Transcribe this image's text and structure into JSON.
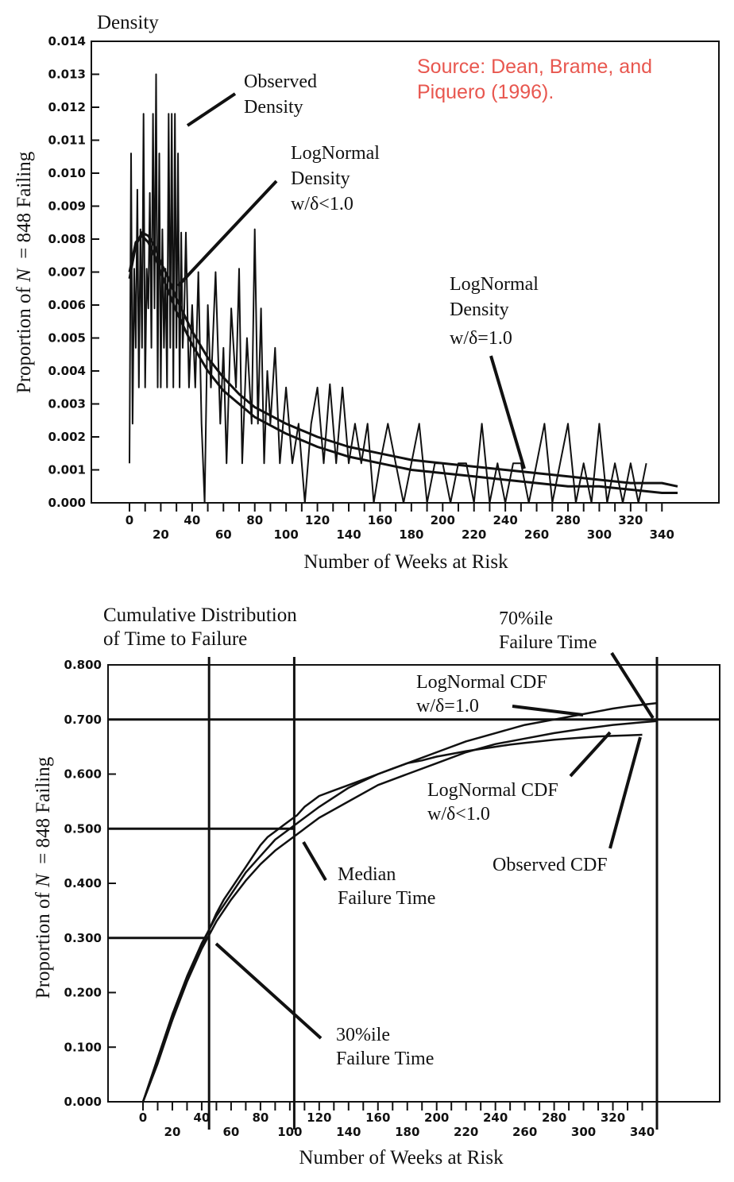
{
  "source_note": [
    "Source: Dean, Brame, and",
    "Piquero (1996)."
  ],
  "colors": {
    "ink": "#111111",
    "source_note": "#e8574f",
    "background": "#ffffff"
  },
  "chart_data": [
    {
      "type": "line",
      "title": "Density",
      "xlabel": "Number of Weeks at Risk",
      "ylabel": "Proportion of N  = 848 Failing",
      "xlim": [
        0,
        350
      ],
      "ylim": [
        0,
        0.014
      ],
      "x_ticks_upper": [
        "0",
        "40",
        "80",
        "120",
        "160",
        "200",
        "240",
        "280",
        "320"
      ],
      "x_ticks_lower": [
        "20",
        "60",
        "100",
        "140",
        "180",
        "220",
        "260",
        "300",
        "340"
      ],
      "y_ticks": [
        "0.000",
        "0.001",
        "0.002",
        "0.003",
        "0.004",
        "0.005",
        "0.006",
        "0.007",
        "0.008",
        "0.009",
        "0.010",
        "0.011",
        "0.012",
        "0.013",
        "0.014"
      ],
      "annotations": [
        {
          "label": [
            "Observed",
            "Density"
          ],
          "points_to_x": 36,
          "points_to_y": 0.0115
        },
        {
          "label": [
            "LogNormal",
            "Density",
            "w/δ<1.0"
          ],
          "points_to_x": 30,
          "points_to_y": 0.0065
        },
        {
          "label": [
            "LogNormal",
            "Density",
            "w/δ=1.0"
          ],
          "points_to_x": 263,
          "points_to_y": 0.001
        }
      ],
      "series": [
        {
          "style": "spiky",
          "x": [
            0,
            1,
            2,
            3,
            4,
            5,
            6,
            7,
            8,
            9,
            10,
            11,
            12,
            13,
            14,
            15,
            16,
            17,
            18,
            19,
            20,
            21,
            22,
            23,
            24,
            25,
            26,
            27,
            28,
            29,
            30,
            31,
            32,
            33,
            34,
            35,
            36,
            38,
            40,
            42,
            44,
            46,
            48,
            50,
            52,
            55,
            58,
            60,
            62,
            65,
            68,
            70,
            72,
            75,
            78,
            80,
            82,
            84,
            86,
            88,
            90,
            93,
            96,
            100,
            104,
            108,
            112,
            116,
            120,
            124,
            128,
            132,
            136,
            140,
            144,
            148,
            152,
            156,
            160,
            165,
            170,
            175,
            180,
            185,
            190,
            195,
            200,
            205,
            210,
            215,
            220,
            225,
            230,
            235,
            240,
            245,
            250,
            255,
            260,
            265,
            270,
            275,
            280,
            285,
            290,
            295,
            300,
            305,
            310,
            315,
            320,
            325,
            330
          ],
          "values": [
            0.0012,
            0.0106,
            0.0024,
            0.0071,
            0.0047,
            0.0095,
            0.0035,
            0.0083,
            0.0047,
            0.0118,
            0.0035,
            0.0071,
            0.0059,
            0.0094,
            0.0047,
            0.0118,
            0.0059,
            0.013,
            0.0035,
            0.0106,
            0.0035,
            0.0083,
            0.0047,
            0.0071,
            0.0035,
            0.0118,
            0.0047,
            0.0118,
            0.0035,
            0.0118,
            0.0047,
            0.0106,
            0.0035,
            0.0082,
            0.0047,
            0.0059,
            0.0082,
            0.0035,
            0.006,
            0.0035,
            0.007,
            0.0024,
            0.0,
            0.006,
            0.0035,
            0.007,
            0.0024,
            0.0047,
            0.0012,
            0.0059,
            0.0035,
            0.0071,
            0.0012,
            0.005,
            0.0024,
            0.0083,
            0.0024,
            0.0059,
            0.0012,
            0.004,
            0.0024,
            0.0047,
            0.0012,
            0.0035,
            0.0012,
            0.0024,
            0.0,
            0.0024,
            0.0035,
            0.0012,
            0.0036,
            0.0012,
            0.0035,
            0.0012,
            0.0024,
            0.0012,
            0.0024,
            0.0,
            0.0012,
            0.0024,
            0.0012,
            0.0,
            0.0012,
            0.0024,
            0.0,
            0.0012,
            0.0012,
            0.0,
            0.0012,
            0.0012,
            0.0,
            0.0024,
            0.0,
            0.0012,
            0.0,
            0.0012,
            0.0012,
            0.0,
            0.0012,
            0.0024,
            0.0,
            0.0012,
            0.0024,
            0.0,
            0.0012,
            0.0,
            0.0024,
            0.0,
            0.0012,
            0.0,
            0.0012,
            0.0,
            0.0012
          ]
        },
        {
          "style": "smooth",
          "x": [
            0,
            4,
            8,
            12,
            16,
            20,
            25,
            30,
            40,
            50,
            60,
            70,
            80,
            100,
            120,
            140,
            160,
            180,
            200,
            220,
            240,
            260,
            280,
            300,
            320,
            340,
            350
          ],
          "values": [
            0.0068,
            0.0078,
            0.0082,
            0.0081,
            0.0078,
            0.0073,
            0.0068,
            0.0062,
            0.0052,
            0.0044,
            0.0038,
            0.0033,
            0.0029,
            0.0024,
            0.002,
            0.0017,
            0.0015,
            0.0013,
            0.0012,
            0.0011,
            0.001,
            0.0009,
            0.0008,
            0.0007,
            0.0006,
            0.0006,
            0.0005
          ]
        },
        {
          "style": "smooth",
          "x": [
            0,
            4,
            8,
            12,
            16,
            20,
            25,
            30,
            40,
            50,
            60,
            70,
            80,
            100,
            120,
            140,
            160,
            180,
            200,
            220,
            240,
            260,
            280,
            300,
            320,
            340,
            350
          ],
          "values": [
            0.007,
            0.0079,
            0.0081,
            0.0079,
            0.0075,
            0.007,
            0.0064,
            0.0058,
            0.0048,
            0.004,
            0.0034,
            0.003,
            0.0026,
            0.0021,
            0.0017,
            0.0014,
            0.0012,
            0.001,
            0.0009,
            0.0008,
            0.0007,
            0.0006,
            0.0005,
            0.0005,
            0.0004,
            0.0003,
            0.0003
          ]
        }
      ]
    },
    {
      "type": "line",
      "title": [
        "Cumulative Distribution",
        "of Time to Failure"
      ],
      "xlabel": "Number of Weeks at Risk",
      "ylabel": "Proportion of N  = 848 Failing",
      "xlim": [
        -10,
        350
      ],
      "ylim": [
        0,
        0.8
      ],
      "x_ticks_upper": [
        "0",
        "40",
        "80",
        "120",
        "160",
        "200",
        "240",
        "280",
        "320"
      ],
      "x_ticks_lower": [
        "20",
        "60",
        "100",
        "140",
        "180",
        "220",
        "260",
        "300",
        "340"
      ],
      "y_ticks": [
        "0.000",
        "0.100",
        "0.200",
        "0.300",
        "0.400",
        "0.500",
        "0.600",
        "0.700",
        "0.800"
      ],
      "reference_lines": {
        "y": [
          0.3,
          0.5,
          0.7
        ],
        "x": [
          45,
          103,
          350
        ]
      },
      "annotations": [
        {
          "label": [
            "70%ile",
            "Failure Time"
          ],
          "points_to_x": 350,
          "points_to_y": 0.7
        },
        {
          "label": [
            "LogNormal CDF",
            "w/δ=1.0"
          ],
          "points_to_x": 300,
          "points_to_y": 0.708
        },
        {
          "label": [
            "LogNormal CDF",
            "w/δ<1.0"
          ],
          "points_to_x": 318,
          "points_to_y": 0.68
        },
        {
          "label": [
            "Observed CDF"
          ],
          "points_to_x": 332,
          "points_to_y": 0.668
        },
        {
          "label": [
            "Median",
            "Failure Time"
          ],
          "points_to_x": 110,
          "points_to_y": 0.49
        },
        {
          "label": [
            "30%ile",
            "Failure Time"
          ],
          "points_to_x": 50,
          "points_to_y": 0.28
        }
      ],
      "series": [
        {
          "x": [
            0,
            10,
            20,
            30,
            40,
            50,
            60,
            70,
            80,
            90,
            100,
            110,
            120,
            140,
            160,
            180,
            200,
            220,
            240,
            260,
            280,
            300,
            320,
            330,
            350
          ],
          "values": [
            0.0,
            0.08,
            0.16,
            0.23,
            0.29,
            0.34,
            0.38,
            0.42,
            0.45,
            0.48,
            0.5,
            0.52,
            0.54,
            0.575,
            0.6,
            0.62,
            0.64,
            0.66,
            0.675,
            0.69,
            0.7,
            0.71,
            0.72,
            0.724,
            0.73
          ]
        },
        {
          "x": [
            0,
            10,
            20,
            30,
            40,
            50,
            60,
            70,
            80,
            90,
            100,
            110,
            120,
            140,
            160,
            180,
            200,
            220,
            240,
            260,
            280,
            300,
            320,
            340,
            350
          ],
          "values": [
            0.0,
            0.07,
            0.15,
            0.22,
            0.28,
            0.33,
            0.37,
            0.405,
            0.435,
            0.46,
            0.48,
            0.5,
            0.52,
            0.55,
            0.58,
            0.6,
            0.62,
            0.64,
            0.655,
            0.665,
            0.675,
            0.683,
            0.69,
            0.695,
            0.697
          ]
        },
        {
          "x": [
            0,
            5,
            10,
            15,
            20,
            25,
            30,
            35,
            40,
            45,
            50,
            55,
            60,
            65,
            70,
            75,
            80,
            85,
            90,
            95,
            100,
            105,
            110,
            115,
            120,
            130,
            140,
            150,
            160,
            170,
            180,
            190,
            200,
            210,
            220,
            230,
            240,
            250,
            260,
            270,
            280,
            290,
            300,
            310,
            320,
            330,
            340
          ],
          "values": [
            0.0,
            0.035,
            0.075,
            0.115,
            0.15,
            0.19,
            0.225,
            0.255,
            0.285,
            0.315,
            0.345,
            0.37,
            0.39,
            0.41,
            0.43,
            0.45,
            0.47,
            0.485,
            0.495,
            0.505,
            0.515,
            0.525,
            0.54,
            0.55,
            0.56,
            0.57,
            0.58,
            0.59,
            0.6,
            0.61,
            0.62,
            0.625,
            0.632,
            0.637,
            0.642,
            0.646,
            0.65,
            0.654,
            0.657,
            0.66,
            0.663,
            0.665,
            0.667,
            0.669,
            0.67,
            0.671,
            0.672
          ]
        }
      ]
    }
  ]
}
